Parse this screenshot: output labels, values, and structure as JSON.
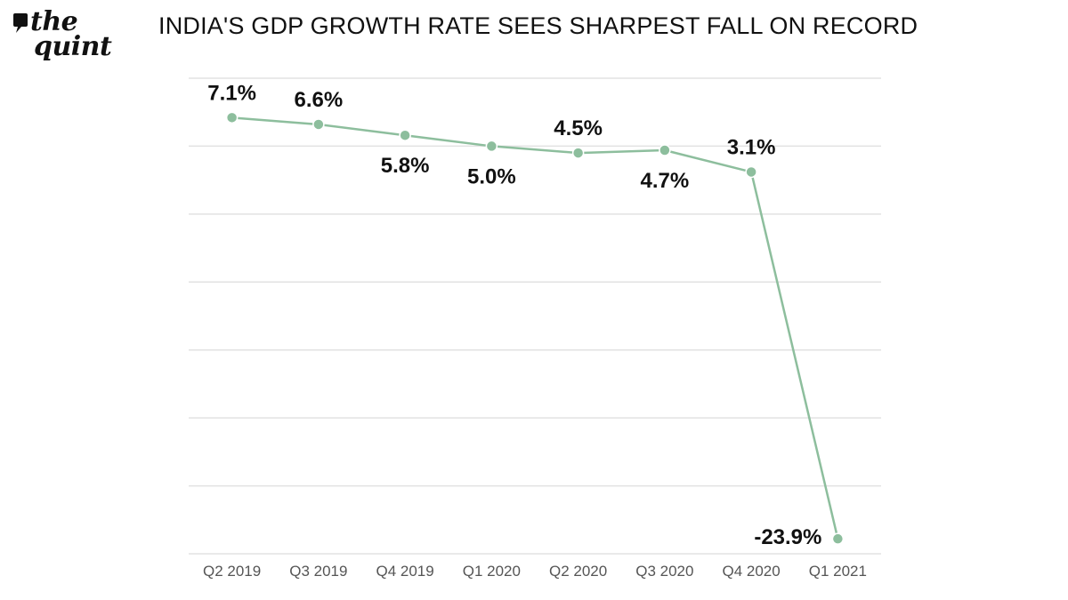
{
  "brand": {
    "line1": "the",
    "line2": "quint"
  },
  "colors": {
    "line": "#8dbe9d",
    "marker": "#8dbe9d",
    "grid": "#e2e2e2",
    "text": "#111111",
    "tick": "#555555"
  },
  "chart_data": {
    "type": "line",
    "title": "INDIA'S GDP GROWTH RATE SEES SHARPEST FALL ON RECORD",
    "xlabel": "",
    "ylabel": "",
    "categories": [
      "Q2 2019",
      "Q3 2019",
      "Q4 2019",
      "Q1 2020",
      "Q2 2020",
      "Q3 2020",
      "Q4 2020",
      "Q1 2021"
    ],
    "values": [
      7.1,
      6.6,
      5.8,
      5.0,
      4.5,
      4.7,
      3.1,
      -23.9
    ],
    "value_labels": [
      "7.1%",
      "6.6%",
      "5.8%",
      "5.0%",
      "4.5%",
      "4.7%",
      "3.1%",
      "-23.9%"
    ],
    "ylim": [
      -25,
      10
    ],
    "y_gridlines": [
      10,
      5,
      0,
      -5,
      -10,
      -15,
      -20,
      -25
    ],
    "grid": true,
    "y_tick_labels_shown": false
  }
}
